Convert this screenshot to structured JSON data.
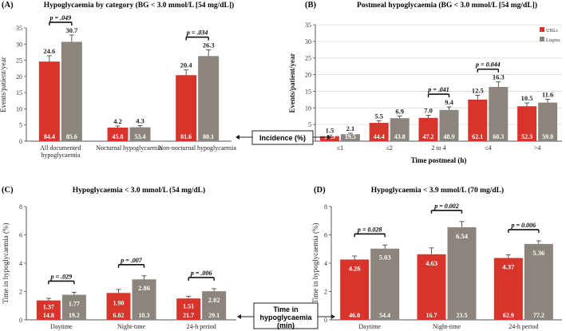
{
  "colors": {
    "red": "#d9342b",
    "gray": "#8c857d",
    "axis": "#555555",
    "grid": "#d9d9d9"
  },
  "callouts": {
    "incidence": "Incidence (%)",
    "time_line1": "Time in",
    "time_line2": "hypoglycaemia",
    "time_line3": "(min)"
  },
  "chart_data": [
    {
      "panel": "(A)",
      "type": "bar",
      "title": "Hypoglycaemia by category (BG < 3.0 mmol/L [54 mg/dL])",
      "ylabel": "Events/patient/year",
      "xlabel": "",
      "ylim": [
        0,
        35
      ],
      "ytick_step": 5,
      "grid": false,
      "categories": [
        [
          "All documented",
          "hypoglycaemia"
        ],
        [
          "Nocturnal hypoglycaemia"
        ],
        [
          "Non-nocturnal hypoglycaemia"
        ]
      ],
      "series": [
        {
          "name": "URLi",
          "values": [
            24.6,
            4.2,
            20.4
          ],
          "value_labels": [
            "24.6",
            "4.2",
            "20.4"
          ],
          "errors": [
            1.8,
            0.5,
            1.6
          ],
          "inner": [
            "84.4",
            "45.8",
            "81.6"
          ]
        },
        {
          "name": "Lispro",
          "values": [
            30.7,
            4.3,
            26.3
          ],
          "value_labels": [
            "30.7",
            "4.3",
            "26.3"
          ],
          "errors": [
            2.1,
            0.5,
            1.9
          ],
          "inner": [
            "85.6",
            "53.4",
            "80.1"
          ]
        }
      ],
      "pvalues": [
        {
          "group": 0,
          "label": "p = .049"
        },
        {
          "group": 2,
          "label": "p = .034"
        }
      ]
    },
    {
      "panel": "(B)",
      "type": "bar",
      "title": "Postmeal  hypoglycaemia (BG < 3.0 mmol/L [54 mg/dL])",
      "ylabel": "Events/patient/year",
      "xlabel": "Time postmeal (h)",
      "ylim": [
        0,
        35
      ],
      "ytick_step": 5,
      "grid": true,
      "legend": "top-right",
      "categories": [
        [
          "≤1"
        ],
        [
          "≤2"
        ],
        [
          "2 to 4"
        ],
        [
          "≤4"
        ],
        [
          ">4"
        ]
      ],
      "series": [
        {
          "name": "URLi",
          "values": [
            1.5,
            5.5,
            7.0,
            12.5,
            10.5
          ],
          "value_labels": [
            "1.5",
            "5.5",
            "7.0",
            "12.5",
            "10.5"
          ],
          "errors": [
            0.3,
            0.6,
            0.8,
            1.3,
            1.0
          ],
          "inner": [
            "17.3",
            "44.4",
            "47.2",
            "62.1",
            "52.3"
          ]
        },
        {
          "name": "Lispro",
          "values": [
            2.1,
            6.9,
            9.4,
            16.3,
            11.6
          ],
          "value_labels": [
            "2.1",
            "6.9",
            "9.4",
            "16.3",
            "11.6"
          ],
          "errors": [
            0.3,
            0.7,
            0.9,
            1.5,
            1.0
          ],
          "inner": [
            "19.5",
            "43.8",
            "48.9",
            "60.3",
            "59.0"
          ]
        }
      ],
      "pvalues": [
        {
          "group": 2,
          "label": "p = .041"
        },
        {
          "group": 3,
          "label": "p = 0.044"
        }
      ]
    },
    {
      "panel": "(C)",
      "type": "bar",
      "title": "Hypoglycaemia < 3.0 mmol/L (54 mg/dL)",
      "ylabel": "Time in hypoglycaemia (%)",
      "xlabel": "",
      "ylim": [
        0,
        8
      ],
      "ytick_step": 2,
      "grid": false,
      "categories": [
        [
          "Daytime"
        ],
        [
          "Night-time"
        ],
        [
          "24-h period"
        ]
      ],
      "series": [
        {
          "name": "URLi",
          "values": [
            1.37,
            1.9,
            1.51
          ],
          "value_labels": [
            "1.37",
            "1.90",
            "1.51"
          ],
          "errors": [
            0.15,
            0.25,
            0.15
          ],
          "inner": [
            "14.8",
            "6.82",
            "21.7"
          ]
        },
        {
          "name": "Lispro",
          "values": [
            1.77,
            2.86,
            2.02
          ],
          "value_labels": [
            "1.77",
            "2.86",
            "2.02"
          ],
          "errors": [
            0.18,
            0.25,
            0.18
          ],
          "inner": [
            "19.2",
            "10.3",
            "29.1"
          ]
        }
      ],
      "pvalues": [
        {
          "group": 0,
          "label": "p = .029"
        },
        {
          "group": 1,
          "label": "p = .007"
        },
        {
          "group": 2,
          "label": "p = .006"
        }
      ]
    },
    {
      "panel": "(D)",
      "type": "bar",
      "title": "Hypoglycaemia < 3.9 mmol/L (70 mg/dL)",
      "ylabel": "Time in hypoglycaemia (%)",
      "xlabel": "",
      "ylim": [
        0,
        8
      ],
      "ytick_step": 2,
      "grid": false,
      "categories": [
        [
          "Daytime"
        ],
        [
          "Night-time"
        ],
        [
          "24-h period"
        ]
      ],
      "series": [
        {
          "name": "URLi",
          "values": [
            4.26,
            4.63,
            4.37
          ],
          "value_labels": [
            "4.26",
            "4.63",
            "4.37"
          ],
          "errors": [
            0.25,
            0.45,
            0.22
          ],
          "inner": [
            "46.0",
            "16.7",
            "62.9"
          ]
        },
        {
          "name": "Lispro",
          "values": [
            5.03,
            6.54,
            5.36
          ],
          "value_labels": [
            "5.03",
            "6.54",
            "5.36"
          ],
          "errors": [
            0.25,
            0.4,
            0.22
          ],
          "inner": [
            "54.4",
            "23.5",
            "77.2"
          ]
        }
      ],
      "pvalues": [
        {
          "group": 0,
          "label": "p = 0.028"
        },
        {
          "group": 1,
          "label": "p = 0.002"
        },
        {
          "group": 2,
          "label": "p = 0.006"
        }
      ]
    }
  ]
}
